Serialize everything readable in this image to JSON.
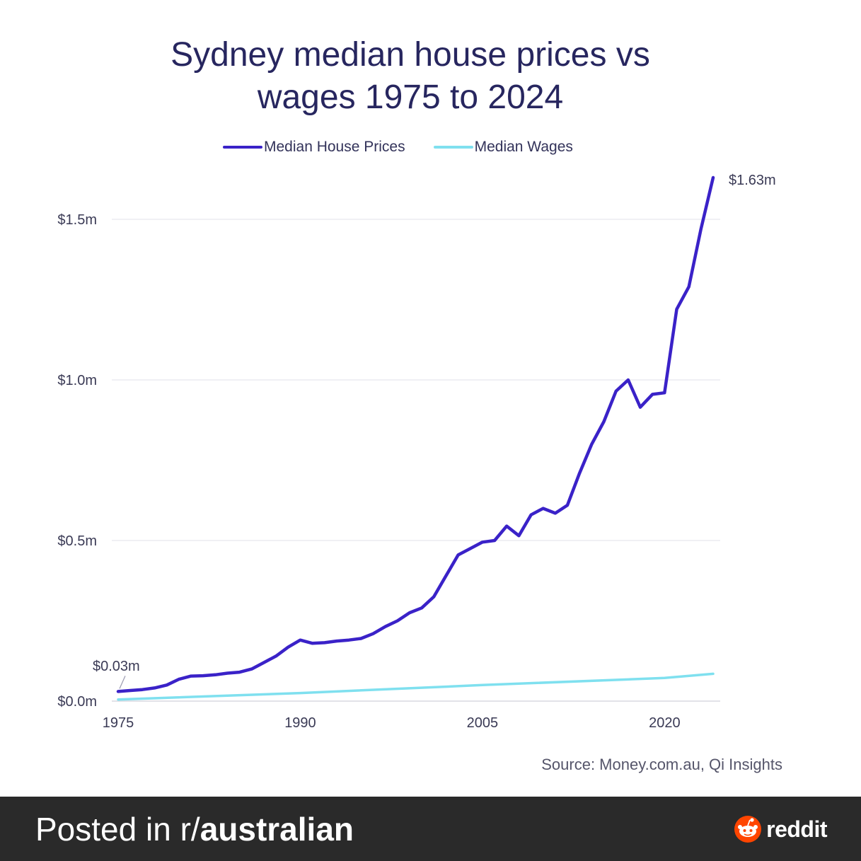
{
  "chart_data": {
    "type": "line",
    "title_line1": "Sydney median house prices vs",
    "title_line2": "wages 1975 to 2024",
    "xlim": [
      1975,
      2024
    ],
    "ylim": [
      0,
      1.63
    ],
    "x_ticks": [
      "1975",
      "1990",
      "2005",
      "2020"
    ],
    "y_ticks": [
      {
        "value": 0.0,
        "label": "$0.0m"
      },
      {
        "value": 0.5,
        "label": "$0.5m"
      },
      {
        "value": 1.0,
        "label": "$1.0m"
      },
      {
        "value": 1.5,
        "label": "$1.5m"
      }
    ],
    "grid": true,
    "legend_position": "top",
    "series": [
      {
        "name": "Median House Prices",
        "color": "#3a22c8",
        "x": [
          1975,
          1976,
          1977,
          1978,
          1979,
          1980,
          1981,
          1982,
          1983,
          1984,
          1985,
          1986,
          1987,
          1988,
          1989,
          1990,
          1991,
          1992,
          1993,
          1994,
          1995,
          1996,
          1997,
          1998,
          1999,
          2000,
          2001,
          2002,
          2003,
          2004,
          2005,
          2006,
          2007,
          2008,
          2009,
          2010,
          2011,
          2012,
          2013,
          2014,
          2015,
          2016,
          2017,
          2018,
          2019,
          2020,
          2021,
          2022,
          2023,
          2024
        ],
        "values": [
          0.03,
          0.033,
          0.036,
          0.041,
          0.05,
          0.068,
          0.078,
          0.079,
          0.082,
          0.087,
          0.09,
          0.1,
          0.12,
          0.14,
          0.168,
          0.19,
          0.18,
          0.182,
          0.187,
          0.19,
          0.195,
          0.21,
          0.232,
          0.25,
          0.275,
          0.29,
          0.325,
          0.39,
          0.455,
          0.475,
          0.495,
          0.5,
          0.545,
          0.515,
          0.58,
          0.6,
          0.585,
          0.61,
          0.71,
          0.8,
          0.87,
          0.965,
          1.0,
          0.915,
          0.955,
          0.96,
          1.22,
          1.29,
          1.47,
          1.63
        ]
      },
      {
        "name": "Median Wages",
        "color": "#7fe0ef",
        "x": [
          1975,
          1990,
          2005,
          2020,
          2024
        ],
        "values": [
          0.005,
          0.025,
          0.05,
          0.072,
          0.085
        ]
      }
    ],
    "annotations": [
      {
        "text": "$0.03m",
        "x": 1975,
        "y": 0.03
      },
      {
        "text": "$1.63m",
        "x": 2024,
        "y": 1.63
      }
    ],
    "source": "Source: Money.com.au, Qi Insights"
  },
  "footer": {
    "prefix": "Posted in r/",
    "subreddit": "australian",
    "brand": "reddit",
    "brand_icon": "reddit-alien-icon"
  }
}
